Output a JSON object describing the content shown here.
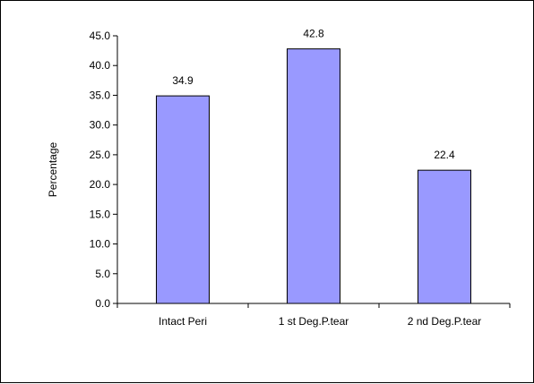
{
  "chart_data": {
    "type": "bar",
    "categories": [
      "Intact Peri",
      "1 st Deg.P.tear",
      "2 nd Deg.P.tear"
    ],
    "values": [
      34.9,
      42.8,
      22.4
    ],
    "data_labels": [
      "34.9",
      "42.8",
      "22.4"
    ],
    "ylabel": "Percentage",
    "xlabel": "",
    "title": "",
    "ylim": [
      0,
      45
    ],
    "yticks": [
      0,
      5,
      10,
      15,
      20,
      25,
      30,
      35,
      40,
      45
    ],
    "ytick_labels": [
      "0.0",
      "5.0",
      "10.0",
      "15.0",
      "20.0",
      "25.0",
      "30.0",
      "35.0",
      "40.0",
      "45.0"
    ],
    "grid": false,
    "legend": "none",
    "bar_color": "#9999FF",
    "bar_edge_color": "#000000"
  }
}
